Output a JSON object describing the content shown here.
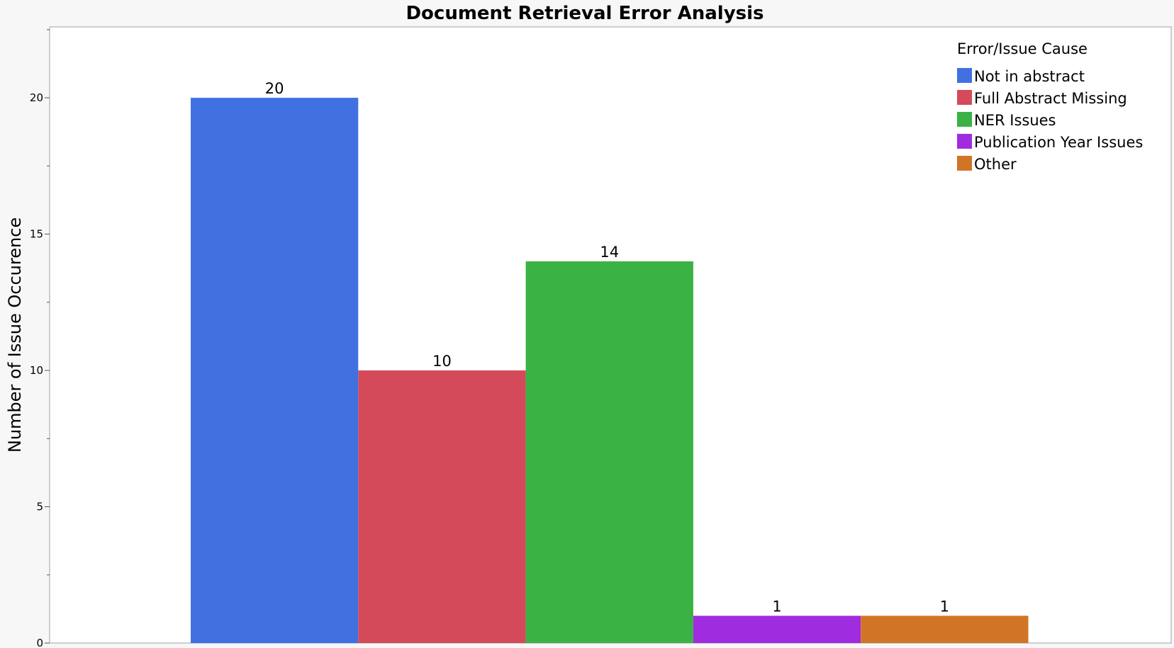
{
  "chart_data": {
    "type": "bar",
    "title": "Document Retrieval Error Analysis",
    "xlabel": "",
    "ylabel": "Number of Issue Occurence",
    "ylim": [
      0,
      22.6
    ],
    "yticks": [
      0,
      5,
      10,
      15,
      20
    ],
    "grid": false,
    "legend_title": "Error/Issue Cause",
    "legend_position": "top-right",
    "categories": [
      "Not in abstract",
      "Full Abstract Missing",
      "NER Issues",
      "Publication Year Issues",
      "Other"
    ],
    "values": [
      20,
      10,
      14,
      1,
      1
    ],
    "data_labels": [
      "20",
      "10",
      "14",
      "1",
      "1"
    ],
    "colors": [
      "#4170e0",
      "#d44a5a",
      "#3bb244",
      "#a02ce0",
      "#d07526"
    ]
  }
}
